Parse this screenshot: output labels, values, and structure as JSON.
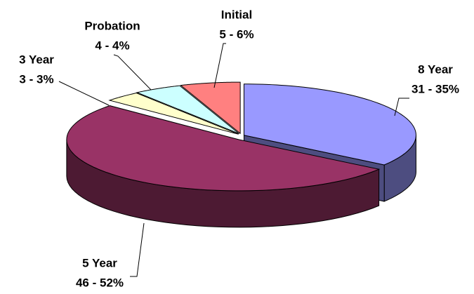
{
  "chart_data": {
    "type": "pie3d",
    "categories": [
      "8 Year",
      "5 Year",
      "3 Year",
      "Probation",
      "Initial"
    ],
    "values": [
      31,
      46,
      3,
      4,
      5
    ],
    "value_labels": [
      "31 - 35%",
      "46 - 52%",
      "3 - 3%",
      "4 - 4%",
      "5 - 6%"
    ],
    "colors": [
      "#9999ff",
      "#993366",
      "#ffffcc",
      "#ccffff",
      "#ff8080"
    ],
    "side_colors": [
      "#4d4d80",
      "#4d1a33",
      "#808066",
      "#668080",
      "#804040"
    ]
  }
}
